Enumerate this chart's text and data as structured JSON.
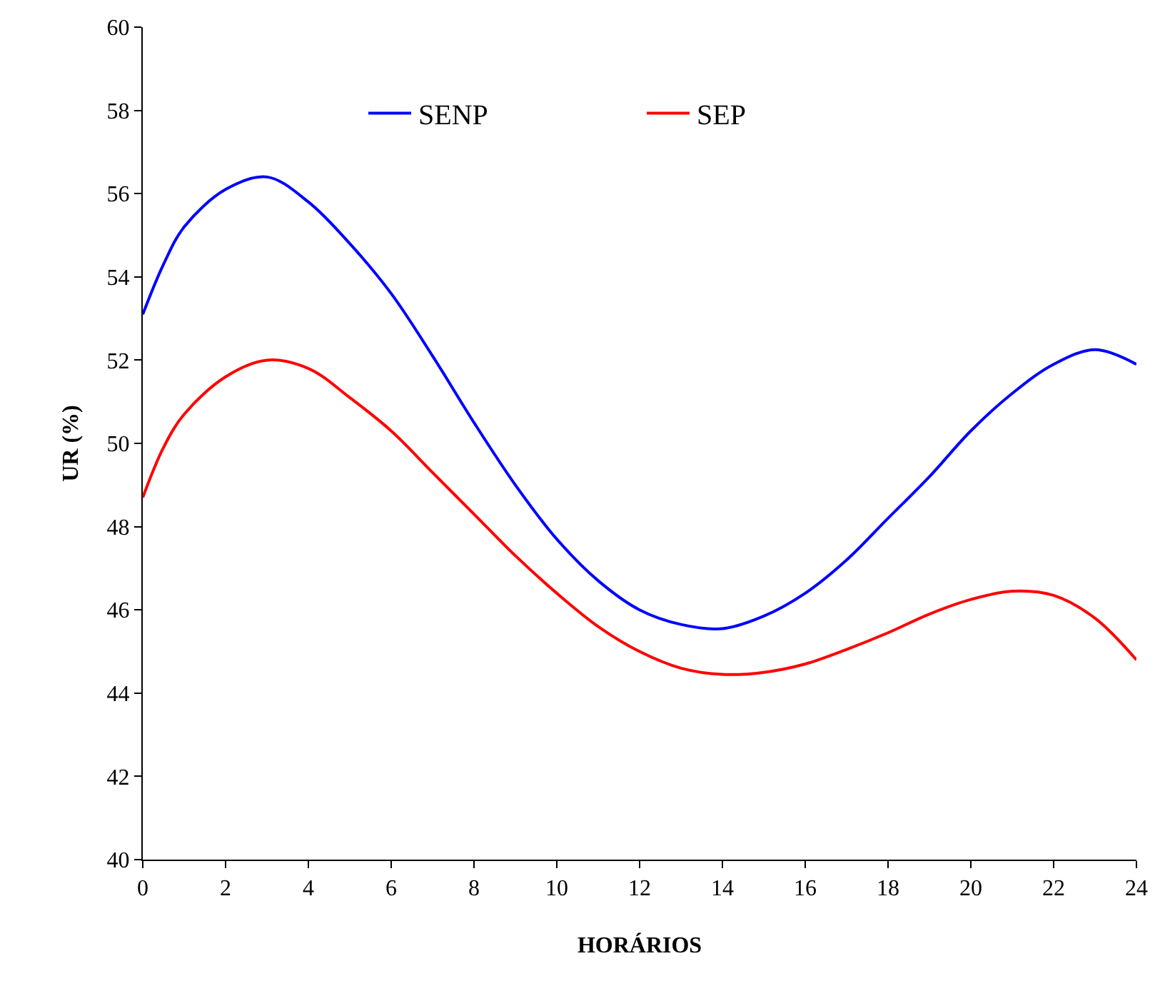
{
  "chart_data": {
    "type": "line",
    "xlabel": "HORÁRIOS",
    "ylabel": "UR (%)",
    "x": [
      0,
      0.5,
      1,
      2,
      3,
      4,
      5,
      6,
      7,
      8,
      9,
      10,
      11,
      12,
      13,
      14,
      15,
      16,
      17,
      18,
      19,
      20,
      21,
      22,
      23,
      24
    ],
    "series": [
      {
        "name": "SENP",
        "color": "#0000ff",
        "values": [
          53.1,
          54.3,
          55.2,
          56.1,
          56.4,
          55.8,
          54.8,
          53.6,
          52.1,
          50.5,
          49.0,
          47.7,
          46.7,
          46.0,
          45.65,
          45.55,
          45.85,
          46.4,
          47.2,
          48.2,
          49.2,
          50.3,
          51.2,
          51.9,
          52.25,
          51.9
        ]
      },
      {
        "name": "SEP",
        "color": "#ff0000",
        "values": [
          48.7,
          49.9,
          50.7,
          51.6,
          52.0,
          51.8,
          51.1,
          50.3,
          49.3,
          48.3,
          47.3,
          46.4,
          45.6,
          45.0,
          44.6,
          44.45,
          44.5,
          44.7,
          45.05,
          45.45,
          45.9,
          46.25,
          46.45,
          46.35,
          45.8,
          44.8
        ]
      }
    ],
    "xlim": [
      0,
      24
    ],
    "xticks": [
      0,
      2,
      4,
      6,
      8,
      10,
      12,
      14,
      16,
      18,
      20,
      22,
      24
    ],
    "ylim": [
      40,
      60
    ],
    "yticks": [
      40,
      42,
      44,
      46,
      48,
      50,
      52,
      54,
      56,
      58,
      60
    ],
    "legend": "top",
    "marker": "none",
    "line_style": "solid"
  }
}
